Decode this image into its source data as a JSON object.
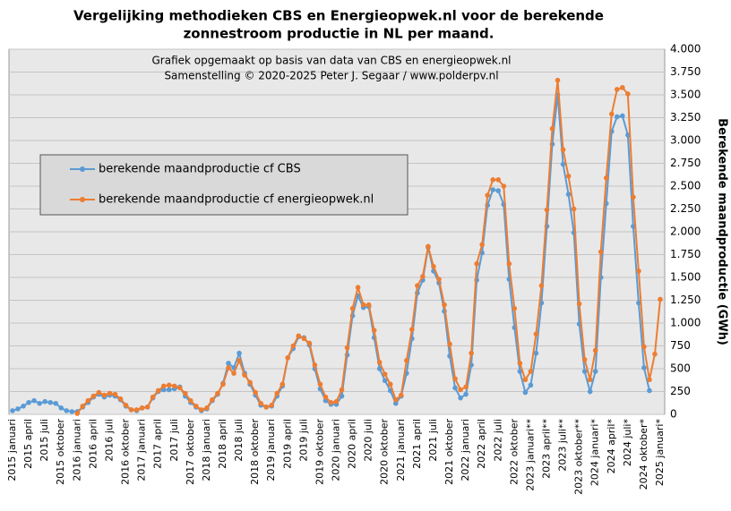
{
  "chart_data": {
    "type": "line",
    "title": "Vergelijking  methodieken  CBS  en Energieopwek.nl  voor de berekende",
    "subtitle": "zonnestroom productie  in  NL  per maand.",
    "annotations": [
      "Grafiek  opgemaakt  op basis van data van CBS  en energieopwek.nl",
      "Samenstelling  ©  2020-2025  Peter J.  Segaar / www.polderpv.nl"
    ],
    "y_label": "Berekende  maandproductie  (GWh)",
    "categories": [
      "2015 januari",
      null,
      null,
      "2015 april",
      null,
      null,
      "2015 juli",
      null,
      null,
      "2015 oktober",
      null,
      null,
      "2016 januari",
      null,
      null,
      "2016 april",
      null,
      null,
      "2016 juli",
      null,
      null,
      "2016 oktober",
      null,
      null,
      "2017 januari",
      null,
      null,
      "2017 april",
      null,
      null,
      "2017 juli",
      null,
      null,
      "2017 oktober",
      null,
      null,
      "2018 januari",
      null,
      null,
      "2018 april",
      null,
      null,
      "2018 juli",
      null,
      null,
      "2018 oktober",
      null,
      null,
      "2019 januari",
      null,
      null,
      "2019 april",
      null,
      null,
      "2019 juli",
      null,
      null,
      "2019 oktober",
      null,
      null,
      "2020 januari",
      null,
      null,
      "2020 april",
      null,
      null,
      "2020 juli",
      null,
      null,
      "2020 oktober",
      null,
      null,
      "2021 januari",
      null,
      null,
      "2021 april",
      null,
      null,
      "2021 juli",
      null,
      null,
      "2021 oktober",
      null,
      null,
      "2022 januari",
      null,
      null,
      "2022 april",
      null,
      null,
      "2022 juli",
      null,
      null,
      "2022 oktober",
      null,
      null,
      "2023 januari**",
      null,
      null,
      "2023 april**",
      null,
      null,
      "2023 juli**",
      null,
      null,
      "2023 oktober**",
      null,
      null,
      "2024 januari*",
      null,
      null,
      "2024 april*",
      null,
      null,
      "2024 juli*",
      null,
      null,
      "2024 oktober*",
      null,
      null,
      "2025 januari*"
    ],
    "series": [
      {
        "name": "berekende maandproductie cf CBS",
        "color": "#5b9bd5",
        "values": [
          40,
          60,
          90,
          130,
          150,
          120,
          140,
          130,
          120,
          70,
          40,
          30,
          30,
          80,
          130,
          190,
          220,
          190,
          210,
          200,
          160,
          90,
          50,
          40,
          70,
          80,
          180,
          250,
          270,
          270,
          280,
          300,
          200,
          130,
          80,
          40,
          60,
          150,
          220,
          340,
          560,
          510,
          670,
          450,
          330,
          210,
          100,
          80,
          90,
          200,
          310,
          620,
          720,
          850,
          840,
          760,
          500,
          280,
          150,
          110,
          110,
          200,
          650,
          1080,
          1300,
          1170,
          1180,
          840,
          500,
          370,
          260,
          120,
          200,
          450,
          830,
          1330,
          1470,
          1830,
          1570,
          1440,
          1130,
          640,
          290,
          180,
          220,
          540,
          1470,
          1770,
          2290,
          2460,
          2450,
          2300,
          1480,
          950,
          470,
          240,
          320,
          670,
          1220,
          2060,
          2960,
          3500,
          2740,
          2410,
          1990,
          990,
          470,
          250,
          470,
          1500,
          2310,
          3100,
          3260,
          3270,
          3060,
          2060,
          1220,
          510,
          260,
          null,
          null
        ]
      },
      {
        "name": "berekende maandproductie cf energieopwek.nl",
        "color": "#ed7d31",
        "values": [
          null,
          null,
          null,
          null,
          null,
          null,
          null,
          null,
          null,
          null,
          null,
          null,
          10,
          90,
          150,
          200,
          240,
          210,
          230,
          220,
          170,
          100,
          50,
          50,
          70,
          80,
          190,
          260,
          310,
          320,
          310,
          290,
          230,
          150,
          90,
          50,
          70,
          160,
          230,
          330,
          510,
          450,
          590,
          430,
          350,
          240,
          120,
          80,
          100,
          230,
          330,
          620,
          750,
          860,
          830,
          780,
          540,
          330,
          190,
          130,
          140,
          270,
          730,
          1160,
          1390,
          1200,
          1200,
          920,
          570,
          440,
          330,
          160,
          210,
          590,
          930,
          1410,
          1510,
          1840,
          1620,
          1480,
          1200,
          770,
          390,
          270,
          300,
          670,
          1650,
          1860,
          2400,
          2570,
          2570,
          2500,
          1650,
          1160,
          560,
          380,
          470,
          880,
          1410,
          2240,
          3130,
          3660,
          2900,
          2610,
          2250,
          1210,
          600,
          380,
          700,
          1780,
          2590,
          3290,
          3560,
          3580,
          3510,
          2380,
          1570,
          740,
          380,
          660,
          1260
        ]
      }
    ],
    "ylim": [
      0,
      4000
    ],
    "yticks": [
      0,
      250,
      500,
      750,
      {
        "value": 1000,
        "label": "1.000"
      },
      {
        "value": 1250,
        "label": "1.250"
      },
      {
        "value": 1500,
        "label": "1.500"
      },
      {
        "value": 1750,
        "label": "1.750"
      },
      {
        "value": 2000,
        "label": "2.000"
      },
      {
        "value": 2250,
        "label": "2.250"
      },
      {
        "value": 2500,
        "label": "2.500"
      },
      {
        "value": 2750,
        "label": "2.750"
      },
      {
        "value": 3000,
        "label": "3.000"
      },
      {
        "value": 3250,
        "label": "3.250"
      },
      {
        "value": 3500,
        "label": "3.500"
      },
      {
        "value": 3750,
        "label": "3.750"
      },
      {
        "value": 4000,
        "label": "4.000"
      }
    ],
    "grid": true,
    "legend": "left"
  }
}
